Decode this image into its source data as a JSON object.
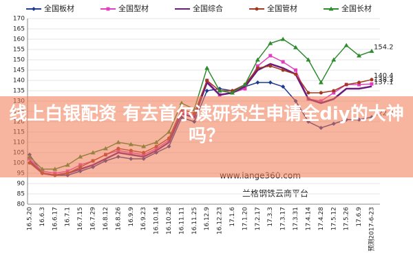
{
  "chart_data": {
    "type": "line",
    "categories": [
      "16.5.20",
      "16.6.3",
      "16.6.17",
      "16.7.1",
      "16.7.15",
      "16.7.29",
      "16.8.12",
      "16.8.26",
      "16.9.9",
      "16.9.23",
      "16.10.14",
      "16.10.28",
      "16.11.11",
      "16.11.25",
      "16.12.9",
      "16.12.23",
      "17.1.6",
      "17.1.20",
      "17.2.17",
      "17.3.3",
      "17.3.17",
      "17.3.31",
      "17.4.14",
      "17.4.28",
      "17.5.12",
      "17.5.26",
      "17.6.9",
      "预测2017-6-23"
    ],
    "series": [
      {
        "name": "全国板材",
        "color": "#1f3a93",
        "marker": "diamond",
        "values": [
          104,
          95,
          94,
          94,
          96,
          98,
          101,
          103,
          102,
          102,
          105,
          108,
          122,
          120,
          135,
          136,
          135,
          137,
          139,
          139,
          137,
          130,
          120,
          117,
          119,
          121,
          121,
          122.2
        ]
      },
      {
        "name": "全国型材",
        "color": "#e040c0",
        "marker": "square",
        "values": [
          102,
          96,
          95,
          96,
          99,
          101,
          104,
          106,
          105,
          104,
          107,
          111,
          125,
          123,
          140,
          133,
          134,
          136,
          147,
          152,
          149,
          145,
          131,
          130,
          134,
          138,
          138,
          138.3
        ]
      },
      {
        "name": "全国综合",
        "color": "#6a1b7a",
        "marker": "none",
        "values": [
          101,
          95,
          94,
          95,
          97,
          99,
          102,
          105,
          104,
          103,
          106,
          110,
          124,
          122,
          139,
          133,
          134,
          137,
          145,
          148,
          146,
          143,
          131,
          129,
          131,
          136,
          136,
          137.1
        ]
      },
      {
        "name": "全国管材",
        "color": "#a0391f",
        "marker": "circle",
        "values": [
          100,
          95,
          94,
          95,
          98,
          101,
          104,
          107,
          106,
          105,
          108,
          112,
          126,
          124,
          140,
          135,
          135,
          138,
          146,
          147,
          145,
          143,
          134,
          134,
          135,
          138,
          139,
          140.4
        ]
      },
      {
        "name": "全国长材",
        "color": "#2e8b2e",
        "marker": "triangle",
        "values": [
          103,
          97,
          97,
          99,
          103,
          105,
          107,
          110,
          109,
          108,
          110,
          115,
          129,
          126,
          146,
          135,
          134,
          138,
          150,
          158,
          160,
          156,
          150,
          139,
          150,
          157,
          152,
          154.2
        ]
      }
    ],
    "ylim": [
      80,
      170
    ],
    "yticks": [
      80,
      85,
      90,
      95,
      100,
      105,
      110,
      115,
      120,
      125,
      130,
      135,
      140,
      145,
      150,
      155,
      160,
      165,
      170
    ],
    "grid": true,
    "annotations": [
      "www.lange360.com",
      "兰格钢铁云商平台"
    ]
  },
  "overlay": {
    "text": "线上白银配资 有去首尔读研究生申请全diy的大神吗？"
  }
}
